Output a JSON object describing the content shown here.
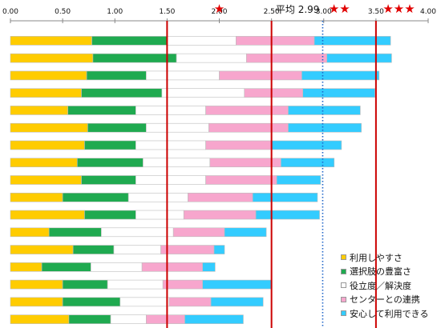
{
  "chart_data": {
    "type": "bar",
    "stacked": true,
    "orientation": "horizontal",
    "xlim": [
      0,
      4
    ],
    "x_ticks": [
      "0.00",
      "0.50",
      "1.00",
      "1.50",
      "2.00",
      "2.50",
      "3.00",
      "3.50",
      "4.00"
    ],
    "x_tick_values": [
      0,
      0.5,
      1,
      1.5,
      2,
      2.5,
      3,
      3.5,
      4
    ],
    "grid": false,
    "legend_position": "bottom-right",
    "series": [
      {
        "name": "利用しやすさ",
        "color": "#ffcc00",
        "values": [
          0.78,
          0.79,
          0.73,
          0.68,
          0.55,
          0.74,
          0.71,
          0.64,
          0.68,
          0.5,
          0.71,
          0.37,
          0.6,
          0.3,
          0.5,
          0.5,
          0.56
        ]
      },
      {
        "name": "選択肢の豊富さ",
        "color": "#1faa50",
        "values": [
          0.72,
          0.8,
          0.57,
          0.77,
          0.65,
          0.56,
          0.49,
          0.63,
          0.52,
          0.63,
          0.49,
          0.5,
          0.39,
          0.47,
          0.43,
          0.55,
          0.4
        ]
      },
      {
        "name": "役立度／解決度",
        "color": "#ffffff",
        "values": [
          0.66,
          0.67,
          0.7,
          0.79,
          0.67,
          0.6,
          0.67,
          0.64,
          0.67,
          0.57,
          0.46,
          0.69,
          0.45,
          0.49,
          0.53,
          0.47,
          0.34
        ]
      },
      {
        "name": "センターとの連携",
        "color": "#f7a6cd",
        "values": [
          0.75,
          0.77,
          0.79,
          0.56,
          0.79,
          0.76,
          0.63,
          0.68,
          0.68,
          0.62,
          0.69,
          0.49,
          0.51,
          0.58,
          0.38,
          0.4,
          0.37
        ]
      },
      {
        "name": "安心して利用できる",
        "color": "#33ccff",
        "values": [
          0.73,
          0.62,
          0.74,
          0.69,
          0.69,
          0.7,
          0.67,
          0.51,
          0.42,
          0.62,
          0.61,
          0.4,
          0.1,
          0.12,
          0.66,
          0.5,
          0.56
        ]
      }
    ],
    "reference_lines": [
      {
        "value": 1.5,
        "style": "solid",
        "color": "#cc0000"
      },
      {
        "value": 2.5,
        "style": "solid",
        "color": "#cc0000"
      },
      {
        "value": 2.99,
        "style": "dotted",
        "color": "#1e64c8",
        "label": "平均 2.99"
      },
      {
        "value": 3.5,
        "style": "solid",
        "color": "#cc0000"
      }
    ],
    "star_markers": [
      {
        "value": 2.0,
        "stars": "★"
      },
      {
        "value": 3.15,
        "stars": "★★"
      },
      {
        "value": 3.72,
        "stars": "★★★"
      }
    ]
  }
}
